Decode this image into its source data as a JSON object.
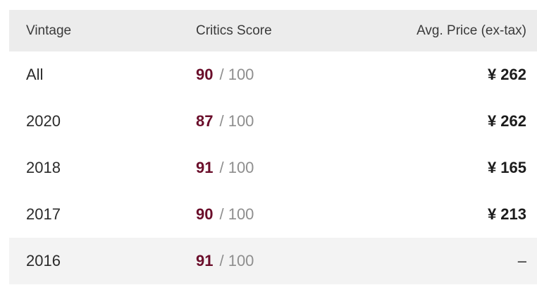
{
  "table": {
    "columns": [
      {
        "key": "vintage",
        "label": "Vintage"
      },
      {
        "key": "critics_score",
        "label": "Critics Score"
      },
      {
        "key": "avg_price",
        "label": "Avg. Price (ex-tax)"
      }
    ],
    "score_denominator": "/ 100",
    "rows": [
      {
        "vintage": "All",
        "score": "90",
        "price": "¥ 262",
        "highlighted": false
      },
      {
        "vintage": "2020",
        "score": "87",
        "price": "¥ 262",
        "highlighted": false
      },
      {
        "vintage": "2018",
        "score": "91",
        "price": "¥ 165",
        "highlighted": false
      },
      {
        "vintage": "2017",
        "score": "90",
        "price": "¥ 213",
        "highlighted": false
      },
      {
        "vintage": "2016",
        "score": "91",
        "price": "–",
        "highlighted": true
      }
    ],
    "colors": {
      "score_accent": "#6a0d2a",
      "score_muted": "#8e8e8e",
      "header_bg": "#ececec",
      "highlight_bg": "#f3f3f3",
      "header_text": "#3a3a3a",
      "body_text": "#2b2b2b",
      "price_text": "#1c1c1c"
    }
  }
}
